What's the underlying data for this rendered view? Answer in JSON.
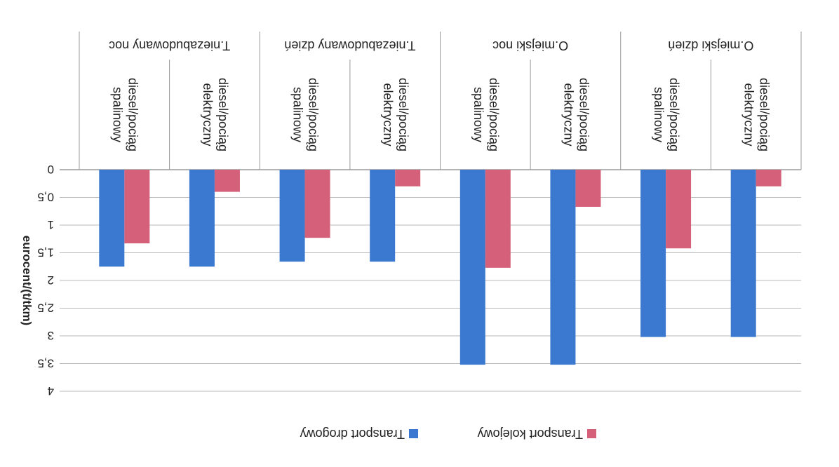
{
  "chart_data": {
    "type": "bar",
    "orientation": "flipped-180",
    "ylabel": "eurocent/(t/tkm)",
    "ylim": [
      0,
      4
    ],
    "yticks": [
      "0",
      "0,5",
      "1",
      "1,5",
      "2",
      "2,5",
      "3",
      "3,5",
      "4"
    ],
    "ytick_values": [
      0,
      0.5,
      1,
      1.5,
      2,
      2.5,
      3,
      3.5,
      4
    ],
    "grid": true,
    "legend_position": "bottom",
    "groups": [
      "O.miejski dzień",
      "O.miejski noc",
      "T.niezabudowany dzień",
      "T.niezabudowany noc"
    ],
    "categories": [
      [
        "diesel/pociąg",
        "elektryczny"
      ],
      [
        "diesel/pociąg",
        "spalinowy"
      ],
      [
        "diesel/pociąg",
        "elektryczny"
      ],
      [
        "diesel/pociąg",
        "spalinowy"
      ],
      [
        "diesel/pociąg",
        "elektryczny"
      ],
      [
        "diesel/pociąg",
        "spalinowy"
      ],
      [
        "diesel/pociąg",
        "elektryczny"
      ],
      [
        "diesel/pociąg",
        "spalinowy"
      ]
    ],
    "series": [
      {
        "name": "Transport drogowy",
        "color": "#3B78D0",
        "values": [
          3.02,
          3.02,
          3.52,
          3.52,
          1.66,
          1.66,
          1.75,
          1.75
        ]
      },
      {
        "name": "Transport kolejowy",
        "color": "#D4607A",
        "values": [
          0.3,
          1.42,
          0.67,
          1.77,
          0.3,
          1.23,
          0.4,
          1.33
        ]
      }
    ]
  }
}
